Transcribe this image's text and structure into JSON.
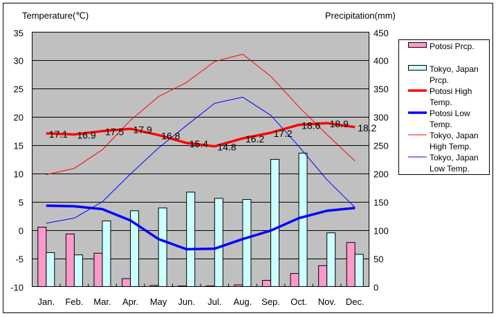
{
  "chart_data": {
    "type": "bar+line",
    "categories": [
      "Jan.",
      "Feb.",
      "Mar.",
      "Apr.",
      "May",
      "Jun.",
      "Jul.",
      "Aug.",
      "Sep.",
      "Oct.",
      "Nov.",
      "Dec."
    ],
    "left_axis": {
      "label": "Temperature(℃)",
      "range": [
        -10,
        35
      ],
      "ticks": [
        "-10",
        "-5",
        "0",
        "5",
        "10",
        "15",
        "20",
        "25",
        "30",
        "35"
      ]
    },
    "right_axis": {
      "label": "Precipitation(mm)",
      "range": [
        0,
        450
      ],
      "ticks": [
        "0",
        "50",
        "100",
        "150",
        "200",
        "250",
        "300",
        "350",
        "400",
        "450"
      ]
    },
    "grid": true,
    "legend_position": "right",
    "series": [
      {
        "name": "Potosi Prcp.",
        "kind": "bar",
        "axis": "right",
        "color": "#ff99cc",
        "values": [
          105,
          93,
          59,
          14,
          2,
          1,
          1,
          3,
          11,
          23,
          37,
          78
        ]
      },
      {
        "name": "Tokyo, Japan Prcp.",
        "kind": "bar",
        "axis": "right",
        "color": "#ccffff",
        "values": [
          60,
          56,
          116,
          134,
          139,
          167,
          156,
          154,
          225,
          236,
          95,
          57
        ]
      },
      {
        "name": "Potosi High Temp.",
        "kind": "line",
        "axis": "left",
        "color": "#ff0000",
        "thick": true,
        "labels": true,
        "values": [
          17.1,
          16.9,
          17.5,
          17.9,
          16.8,
          15.4,
          14.8,
          16.2,
          17.2,
          18.6,
          18.9,
          18.2
        ]
      },
      {
        "name": "Potosi Low Temp.",
        "kind": "line",
        "axis": "left",
        "color": "#0000ff",
        "thick": true,
        "values": [
          4.3,
          4.2,
          3.7,
          1.7,
          -1.6,
          -3.4,
          -3.3,
          -1.6,
          -0.1,
          2.1,
          3.4,
          3.9
        ]
      },
      {
        "name": "Tokyo, Japan High Temp.",
        "kind": "line",
        "axis": "left",
        "color": "#ff0000",
        "thick": false,
        "values": [
          9.8,
          10.9,
          14.2,
          19.4,
          23.6,
          26.1,
          29.8,
          31.1,
          27.2,
          21.8,
          16.9,
          12.2
        ]
      },
      {
        "name": "Tokyo, Japan Low Temp.",
        "kind": "line",
        "axis": "left",
        "color": "#0000ff",
        "thick": false,
        "values": [
          1.2,
          2.1,
          5.0,
          9.9,
          14.5,
          18.5,
          22.4,
          23.5,
          20.3,
          14.8,
          8.9,
          4.0
        ]
      }
    ],
    "legend": [
      [
        "Potosi Prcp."
      ],
      [
        "Tokyo, Japan",
        "Prcp."
      ],
      [
        "Potosi High",
        "Temp."
      ],
      [
        "Potosi Low",
        "Temp."
      ],
      [
        "Tokyo, Japan",
        "High Temp."
      ],
      [
        "Tokyo, Japan",
        "Low Temp."
      ]
    ]
  }
}
